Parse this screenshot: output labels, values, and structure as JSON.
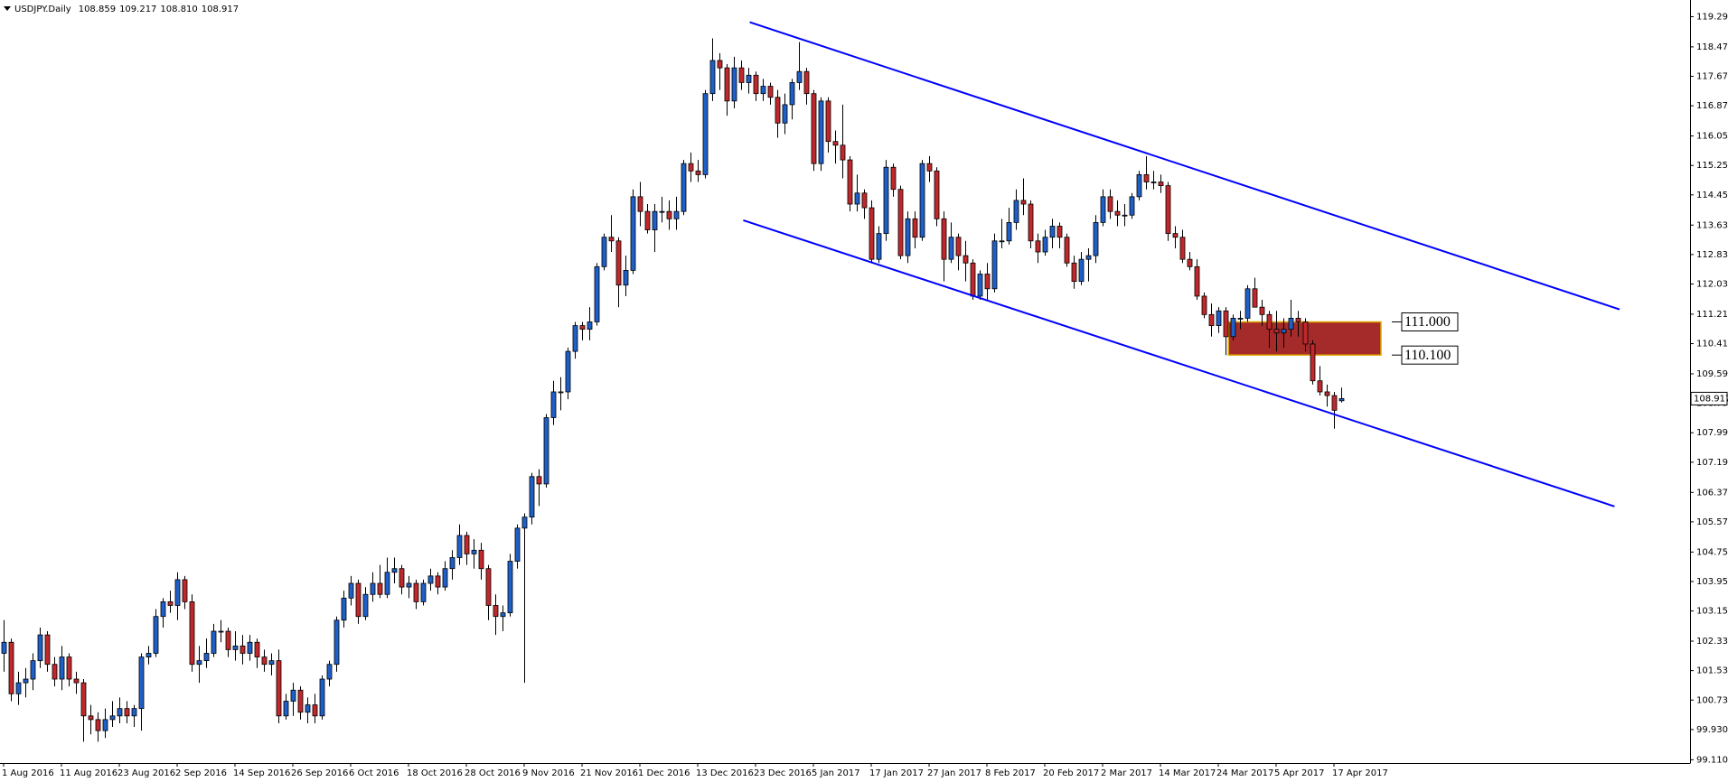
{
  "chart_data": {
    "type": "candlestick",
    "title": "USDJPY.Daily",
    "ohlc_labels": [
      "108.859",
      "109.217",
      "108.810",
      "108.917"
    ],
    "up_color": "#1e5fc8",
    "down_color": "#c0282b",
    "categories": [
      "1 Aug 2016",
      null,
      null,
      null,
      null,
      null,
      null,
      null,
      "11 Aug 2016",
      null,
      null,
      null,
      null,
      null,
      null,
      null,
      "23 Aug 2016",
      null,
      null,
      null,
      null,
      null,
      null,
      null,
      "2 Sep 2016",
      null,
      null,
      null,
      null,
      null,
      null,
      null,
      "14 Sep 2016",
      null,
      null,
      null,
      null,
      null,
      null,
      null,
      "26 Sep 2016",
      null,
      null,
      null,
      null,
      null,
      null,
      null,
      "6 Oct 2016",
      null,
      null,
      null,
      null,
      null,
      null,
      null,
      "18 Oct 2016",
      null,
      null,
      null,
      null,
      null,
      null,
      null,
      "28 Oct 2016",
      null,
      null,
      null,
      null,
      null,
      null,
      null,
      "9 Nov 2016",
      null,
      null,
      null,
      null,
      null,
      null,
      null,
      "21 Nov 2016",
      null,
      null,
      null,
      null,
      null,
      null,
      null,
      "1 Dec 2016",
      null,
      null,
      null,
      null,
      null,
      null,
      null,
      "13 Dec 2016",
      null,
      null,
      null,
      null,
      null,
      null,
      null,
      "23 Dec 2016",
      null,
      null,
      null,
      null,
      null,
      null,
      null,
      "5 Jan 2017",
      null,
      null,
      null,
      null,
      null,
      null,
      null,
      "17 Jan 2017",
      null,
      null,
      null,
      null,
      null,
      null,
      null,
      "27 Jan 2017",
      null,
      null,
      null,
      null,
      null,
      null,
      null,
      "8 Feb 2017",
      null,
      null,
      null,
      null,
      null,
      null,
      null,
      "20 Feb 2017",
      null,
      null,
      null,
      null,
      null,
      null,
      null,
      "2 Mar 2017",
      null,
      null,
      null,
      null,
      null,
      null,
      null,
      "14 Mar 2017",
      null,
      null,
      null,
      null,
      null,
      null,
      null,
      "24 Mar 2017",
      null,
      null,
      null,
      null,
      null,
      null,
      null,
      "5 Apr 2017",
      null,
      null,
      null,
      null,
      null,
      null,
      null,
      "17 Apr 2017",
      null
    ],
    "ohlc": [
      [
        102.0,
        102.9,
        101.5,
        102.3
      ],
      [
        102.3,
        102.4,
        100.7,
        100.9
      ],
      [
        100.9,
        101.5,
        100.6,
        101.2
      ],
      [
        101.2,
        101.6,
        100.8,
        101.3
      ],
      [
        101.3,
        102.0,
        101.0,
        101.8
      ],
      [
        101.8,
        102.7,
        101.6,
        102.5
      ],
      [
        102.5,
        102.6,
        101.5,
        101.7
      ],
      [
        101.7,
        101.9,
        101.1,
        101.3
      ],
      [
        101.3,
        102.2,
        101.0,
        101.9
      ],
      [
        101.9,
        102.0,
        101.1,
        101.3
      ],
      [
        101.3,
        101.5,
        100.9,
        101.2
      ],
      [
        101.2,
        101.3,
        99.6,
        100.3
      ],
      [
        100.3,
        100.6,
        99.8,
        100.2
      ],
      [
        100.2,
        100.4,
        99.6,
        99.9
      ],
      [
        99.9,
        100.5,
        99.7,
        100.2
      ],
      [
        100.2,
        100.7,
        100.0,
        100.3
      ],
      [
        100.3,
        100.8,
        100.1,
        100.5
      ],
      [
        100.5,
        100.7,
        100.1,
        100.3
      ],
      [
        100.3,
        100.6,
        100.0,
        100.5
      ],
      [
        100.5,
        102.0,
        99.9,
        101.9
      ],
      [
        101.9,
        102.2,
        101.7,
        102.0
      ],
      [
        102.0,
        103.2,
        101.9,
        103.0
      ],
      [
        103.0,
        103.5,
        102.7,
        103.4
      ],
      [
        103.4,
        103.7,
        103.1,
        103.3
      ],
      [
        103.3,
        104.2,
        102.9,
        104.0
      ],
      [
        104.0,
        104.1,
        103.2,
        103.4
      ],
      [
        103.4,
        103.6,
        101.5,
        101.7
      ],
      [
        101.7,
        102.2,
        101.2,
        101.8
      ],
      [
        101.8,
        102.4,
        101.6,
        102.0
      ],
      [
        102.0,
        102.8,
        101.9,
        102.6
      ],
      [
        102.6,
        102.9,
        102.3,
        102.6
      ],
      [
        102.6,
        102.7,
        101.9,
        102.1
      ],
      [
        102.1,
        102.6,
        101.8,
        102.2
      ],
      [
        102.2,
        102.5,
        101.7,
        102.0
      ],
      [
        102.0,
        102.5,
        101.8,
        102.3
      ],
      [
        102.3,
        102.4,
        101.6,
        101.9
      ],
      [
        101.9,
        102.1,
        101.5,
        101.7
      ],
      [
        101.7,
        102.0,
        101.4,
        101.8
      ],
      [
        101.8,
        102.1,
        100.1,
        100.3
      ],
      [
        100.3,
        100.9,
        100.2,
        100.7
      ],
      [
        100.7,
        101.2,
        100.3,
        101.0
      ],
      [
        101.0,
        101.1,
        100.2,
        100.4
      ],
      [
        100.4,
        100.8,
        100.1,
        100.6
      ],
      [
        100.6,
        100.9,
        100.1,
        100.3
      ],
      [
        100.3,
        101.4,
        100.2,
        101.3
      ],
      [
        101.3,
        101.8,
        101.1,
        101.7
      ],
      [
        101.7,
        103.0,
        101.5,
        102.9
      ],
      [
        102.9,
        103.7,
        102.7,
        103.5
      ],
      [
        103.5,
        104.1,
        103.3,
        103.9
      ],
      [
        103.9,
        104.0,
        102.8,
        103.0
      ],
      [
        103.0,
        103.8,
        102.9,
        103.6
      ],
      [
        103.6,
        104.2,
        103.4,
        103.9
      ],
      [
        103.9,
        104.4,
        103.5,
        103.6
      ],
      [
        103.6,
        104.6,
        103.5,
        104.2
      ],
      [
        104.2,
        104.6,
        103.9,
        104.3
      ],
      [
        104.3,
        104.4,
        103.6,
        103.8
      ],
      [
        103.8,
        104.1,
        103.5,
        103.9
      ],
      [
        103.9,
        104.0,
        103.2,
        103.4
      ],
      [
        103.4,
        104.0,
        103.3,
        103.9
      ],
      [
        103.9,
        104.3,
        103.7,
        104.1
      ],
      [
        104.1,
        104.2,
        103.6,
        103.8
      ],
      [
        103.8,
        104.5,
        103.7,
        104.3
      ],
      [
        104.3,
        104.8,
        104.0,
        104.6
      ],
      [
        104.6,
        105.5,
        104.4,
        105.2
      ],
      [
        105.2,
        105.3,
        104.4,
        104.7
      ],
      [
        104.7,
        105.1,
        104.3,
        104.8
      ],
      [
        104.8,
        105.0,
        104.0,
        104.3
      ],
      [
        104.3,
        104.4,
        102.9,
        103.3
      ],
      [
        103.3,
        103.6,
        102.5,
        103.0
      ],
      [
        103.0,
        103.3,
        102.6,
        103.1
      ],
      [
        103.1,
        104.7,
        103.0,
        104.5
      ],
      [
        104.5,
        105.5,
        104.3,
        105.4
      ],
      [
        105.4,
        105.8,
        101.2,
        105.7
      ],
      [
        105.7,
        106.9,
        105.5,
        106.8
      ],
      [
        106.8,
        107.0,
        106.0,
        106.6
      ],
      [
        106.6,
        108.5,
        106.5,
        108.4
      ],
      [
        108.4,
        109.4,
        108.2,
        109.1
      ],
      [
        109.1,
        109.5,
        108.6,
        109.1
      ],
      [
        109.1,
        110.3,
        108.9,
        110.2
      ],
      [
        110.2,
        111.0,
        110.0,
        110.9
      ],
      [
        110.9,
        111.0,
        110.5,
        110.8
      ],
      [
        110.8,
        111.4,
        110.5,
        111.0
      ],
      [
        111.0,
        112.6,
        110.9,
        112.5
      ],
      [
        112.5,
        113.4,
        112.4,
        113.3
      ],
      [
        113.3,
        113.9,
        112.9,
        113.2
      ],
      [
        113.2,
        113.3,
        111.4,
        112.0
      ],
      [
        112.0,
        112.8,
        111.7,
        112.4
      ],
      [
        112.4,
        114.6,
        112.3,
        114.4
      ],
      [
        114.4,
        114.8,
        113.6,
        114.0
      ],
      [
        114.0,
        114.2,
        113.4,
        113.5
      ],
      [
        113.5,
        114.2,
        112.9,
        114.0
      ],
      [
        114.0,
        114.4,
        113.7,
        114.0
      ],
      [
        114.0,
        114.3,
        113.5,
        113.8
      ],
      [
        113.8,
        114.4,
        113.5,
        114.0
      ],
      [
        114.0,
        115.4,
        113.9,
        115.3
      ],
      [
        115.3,
        115.6,
        114.8,
        115.1
      ],
      [
        115.1,
        115.4,
        114.8,
        115.0
      ],
      [
        115.0,
        117.3,
        114.9,
        117.2
      ],
      [
        117.2,
        118.7,
        117.0,
        118.1
      ],
      [
        118.1,
        118.3,
        117.3,
        117.9
      ],
      [
        117.9,
        118.0,
        116.6,
        117.0
      ],
      [
        117.0,
        118.2,
        116.8,
        117.9
      ],
      [
        117.9,
        118.1,
        117.3,
        117.5
      ],
      [
        117.5,
        117.9,
        117.2,
        117.7
      ],
      [
        117.7,
        117.8,
        117.0,
        117.2
      ],
      [
        117.2,
        117.6,
        117.0,
        117.4
      ],
      [
        117.4,
        117.5,
        116.9,
        117.1
      ],
      [
        117.1,
        117.3,
        116.0,
        116.4
      ],
      [
        116.4,
        117.2,
        116.1,
        116.9
      ],
      [
        116.9,
        117.6,
        116.5,
        117.5
      ],
      [
        117.5,
        118.6,
        117.3,
        117.8
      ],
      [
        117.8,
        117.9,
        116.9,
        117.2
      ],
      [
        117.2,
        117.3,
        115.1,
        115.3
      ],
      [
        115.3,
        117.1,
        115.1,
        117.0
      ],
      [
        117.0,
        117.1,
        115.6,
        115.9
      ],
      [
        115.9,
        116.2,
        115.3,
        115.8
      ],
      [
        115.8,
        116.9,
        114.9,
        115.4
      ],
      [
        115.4,
        115.5,
        114.0,
        114.2
      ],
      [
        114.2,
        115.0,
        114.0,
        114.5
      ],
      [
        114.5,
        114.6,
        113.8,
        114.1
      ],
      [
        114.1,
        114.3,
        112.6,
        112.7
      ],
      [
        112.7,
        113.6,
        112.6,
        113.4
      ],
      [
        113.4,
        115.4,
        113.2,
        115.2
      ],
      [
        115.2,
        115.3,
        114.4,
        114.6
      ],
      [
        114.6,
        114.7,
        112.7,
        112.8
      ],
      [
        112.8,
        114.0,
        112.6,
        113.8
      ],
      [
        113.8,
        114.0,
        113.0,
        113.3
      ],
      [
        113.3,
        115.4,
        113.2,
        115.3
      ],
      [
        115.3,
        115.5,
        114.8,
        115.1
      ],
      [
        115.1,
        115.2,
        113.6,
        113.8
      ],
      [
        113.8,
        114.0,
        112.1,
        112.7
      ],
      [
        112.7,
        113.7,
        112.6,
        113.3
      ],
      [
        113.3,
        113.4,
        112.4,
        112.8
      ],
      [
        112.8,
        113.2,
        112.1,
        112.6
      ],
      [
        112.6,
        112.7,
        111.6,
        111.7
      ],
      [
        111.7,
        112.4,
        111.6,
        112.3
      ],
      [
        112.3,
        112.6,
        111.6,
        111.9
      ],
      [
        111.9,
        113.4,
        111.8,
        113.2
      ],
      [
        113.2,
        113.8,
        113.0,
        113.2
      ],
      [
        113.2,
        114.1,
        113.1,
        113.7
      ],
      [
        113.7,
        114.6,
        113.5,
        114.3
      ],
      [
        114.3,
        114.9,
        113.9,
        114.2
      ],
      [
        114.2,
        114.3,
        113.0,
        113.2
      ],
      [
        113.2,
        113.4,
        112.6,
        112.9
      ],
      [
        112.9,
        113.5,
        112.8,
        113.3
      ],
      [
        113.3,
        113.8,
        113.0,
        113.6
      ],
      [
        113.6,
        113.7,
        113.0,
        113.3
      ],
      [
        113.3,
        113.4,
        112.5,
        112.6
      ],
      [
        112.6,
        112.8,
        111.9,
        112.1
      ],
      [
        112.1,
        112.9,
        112.0,
        112.7
      ],
      [
        112.7,
        113.0,
        112.1,
        112.8
      ],
      [
        112.8,
        113.9,
        112.6,
        113.7
      ],
      [
        113.7,
        114.6,
        113.6,
        114.4
      ],
      [
        114.4,
        114.6,
        113.8,
        114.0
      ],
      [
        114.0,
        114.3,
        113.6,
        113.9
      ],
      [
        113.9,
        114.2,
        113.6,
        113.9
      ],
      [
        113.9,
        114.5,
        113.8,
        114.4
      ],
      [
        114.4,
        115.1,
        114.3,
        115.0
      ],
      [
        115.0,
        115.5,
        114.6,
        114.8
      ],
      [
        114.8,
        115.1,
        114.6,
        114.8
      ],
      [
        114.8,
        115.0,
        114.5,
        114.7
      ],
      [
        114.7,
        114.8,
        113.2,
        113.4
      ],
      [
        113.4,
        113.6,
        113.0,
        113.3
      ],
      [
        113.3,
        113.5,
        112.6,
        112.7
      ],
      [
        112.7,
        112.9,
        112.4,
        112.5
      ],
      [
        112.5,
        112.7,
        111.6,
        111.7
      ],
      [
        111.7,
        111.8,
        111.1,
        111.2
      ],
      [
        111.2,
        111.5,
        110.6,
        110.9
      ],
      [
        110.9,
        111.4,
        110.7,
        111.3
      ],
      [
        111.3,
        111.4,
        110.1,
        110.6
      ],
      [
        110.6,
        111.2,
        110.5,
        111.1
      ],
      [
        111.1,
        111.3,
        110.8,
        111.1
      ],
      [
        111.1,
        112.0,
        111.0,
        111.9
      ],
      [
        111.9,
        112.2,
        111.4,
        111.4
      ],
      [
        111.4,
        111.6,
        110.9,
        111.2
      ],
      [
        111.2,
        111.3,
        110.3,
        110.8
      ],
      [
        110.8,
        111.3,
        110.2,
        110.7
      ],
      [
        110.7,
        111.1,
        110.3,
        110.8
      ],
      [
        110.8,
        111.6,
        110.6,
        111.1
      ],
      [
        111.1,
        111.3,
        110.6,
        111.0
      ],
      [
        111.0,
        111.1,
        110.2,
        110.4
      ],
      [
        110.4,
        110.5,
        109.3,
        109.4
      ],
      [
        109.4,
        109.8,
        109.0,
        109.1
      ],
      [
        109.1,
        109.3,
        108.7,
        109.0
      ],
      [
        109.0,
        109.1,
        108.1,
        108.6
      ],
      [
        108.859,
        109.217,
        108.81,
        108.917
      ]
    ],
    "ylim": [
      99.02,
      119.62
    ],
    "yticks": [
      {
        "value": 119.29,
        "label": "119.290"
      },
      {
        "value": 118.47,
        "label": "118.470"
      },
      {
        "value": 117.67,
        "label": "117.670"
      },
      {
        "value": 116.87,
        "label": "116.870"
      },
      {
        "value": 116.05,
        "label": "116.050"
      },
      {
        "value": 115.25,
        "label": "115.250"
      },
      {
        "value": 114.45,
        "label": "114.450"
      },
      {
        "value": 113.63,
        "label": "113.630"
      },
      {
        "value": 112.83,
        "label": "112.830"
      },
      {
        "value": 112.03,
        "label": "112.030"
      },
      {
        "value": 111.21,
        "label": "111.210"
      },
      {
        "value": 110.41,
        "label": "110.410"
      },
      {
        "value": 109.59,
        "label": "109.590"
      },
      {
        "value": 108.79,
        "label": "108.790"
      },
      {
        "value": 107.99,
        "label": "107.990"
      },
      {
        "value": 107.19,
        "label": "107.190"
      },
      {
        "value": 106.37,
        "label": "106.370"
      },
      {
        "value": 105.57,
        "label": "105.570"
      },
      {
        "value": 104.75,
        "label": "104.750"
      },
      {
        "value": 103.95,
        "label": "103.950"
      },
      {
        "value": 103.15,
        "label": "103.150"
      },
      {
        "value": 102.33,
        "label": "102.330"
      },
      {
        "value": 101.53,
        "label": "101.530"
      },
      {
        "value": 100.73,
        "label": "100.730"
      },
      {
        "value": 99.93,
        "label": "99.930"
      },
      {
        "value": 99.11,
        "label": "99.110"
      }
    ],
    "channel_color": "#0000ff",
    "channel": [
      {
        "x": [
          103.2,
          223.5
        ],
        "y": [
          119.14,
          111.34
        ]
      },
      {
        "x": [
          102.3,
          222.8
        ],
        "y": [
          113.76,
          105.99
        ]
      }
    ],
    "zone": {
      "start": 169.4,
      "end": 190.5,
      "color": "#a52a2a",
      "border": "#e0a800",
      "high": {
        "value": 111,
        "label": "111.000"
      },
      "low": {
        "value": 110.1,
        "label": "110.100"
      }
    }
  }
}
